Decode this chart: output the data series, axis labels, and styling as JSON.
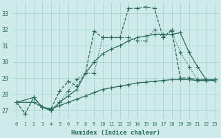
{
  "xlabel": "Humidex (Indice chaleur)",
  "ylabel": "",
  "background_color": "#ceeaea",
  "grid_color": "#aad4d4",
  "line_color": "#2a6b5a",
  "xlim": [
    -0.5,
    23.5
  ],
  "ylim": [
    26.5,
    33.7
  ],
  "xticks": [
    0,
    1,
    2,
    3,
    4,
    5,
    6,
    7,
    8,
    9,
    10,
    11,
    12,
    13,
    14,
    15,
    16,
    17,
    18,
    19,
    20,
    21,
    22,
    23
  ],
  "yticks": [
    27,
    28,
    29,
    30,
    31,
    32,
    33
  ],
  "series": [
    {
      "x": [
        0,
        1,
        2,
        3,
        4,
        5,
        6,
        7,
        8,
        9,
        10,
        11,
        12,
        13,
        14,
        15,
        16,
        17,
        18,
        19,
        20,
        21,
        22,
        23
      ],
      "y": [
        27.5,
        26.8,
        27.8,
        27.2,
        27.1,
        28.2,
        28.8,
        28.5,
        29.3,
        31.9,
        31.5,
        31.5,
        31.5,
        33.3,
        33.3,
        33.4,
        33.3,
        31.5,
        32.0,
        29.0,
        29.0,
        28.9,
        28.9,
        28.9
      ],
      "linestyle": "--",
      "marker": "+",
      "markersize": 4,
      "linewidth": 0.9
    },
    {
      "x": [
        0,
        1,
        2,
        3,
        4,
        5,
        6,
        7,
        8,
        9,
        10,
        11,
        12,
        13,
        14,
        15,
        16,
        17,
        18,
        19,
        20,
        21,
        22,
        23
      ],
      "y": [
        27.5,
        26.8,
        27.8,
        27.2,
        27.0,
        27.5,
        28.2,
        28.9,
        29.3,
        29.3,
        31.5,
        31.5,
        31.5,
        31.5,
        31.3,
        31.3,
        32.0,
        31.5,
        31.9,
        30.6,
        29.7,
        28.9,
        28.9,
        28.9
      ],
      "linestyle": ":",
      "marker": "+",
      "markersize": 4,
      "linewidth": 0.9
    },
    {
      "x": [
        0,
        2,
        3,
        4,
        5,
        6,
        7,
        8,
        9,
        10,
        11,
        12,
        13,
        14,
        15,
        16,
        17,
        18,
        19,
        20,
        21,
        22,
        23
      ],
      "y": [
        27.5,
        27.8,
        27.2,
        27.0,
        27.5,
        27.9,
        28.3,
        29.3,
        30.0,
        30.5,
        30.8,
        31.0,
        31.3,
        31.5,
        31.6,
        31.7,
        31.7,
        31.7,
        31.8,
        30.6,
        29.7,
        28.9,
        28.9
      ],
      "linestyle": "-",
      "marker": "+",
      "markersize": 4,
      "linewidth": 0.9
    },
    {
      "x": [
        0,
        2,
        3,
        4,
        5,
        6,
        7,
        8,
        9,
        10,
        11,
        12,
        13,
        14,
        15,
        16,
        17,
        18,
        19,
        20,
        21,
        22,
        23
      ],
      "y": [
        27.5,
        27.5,
        27.2,
        27.1,
        27.3,
        27.5,
        27.7,
        27.9,
        28.1,
        28.3,
        28.4,
        28.5,
        28.6,
        28.7,
        28.75,
        28.8,
        28.85,
        28.9,
        28.9,
        28.9,
        28.85,
        28.85,
        28.85
      ],
      "linestyle": "-",
      "marker": "+",
      "markersize": 4,
      "linewidth": 0.9
    }
  ]
}
